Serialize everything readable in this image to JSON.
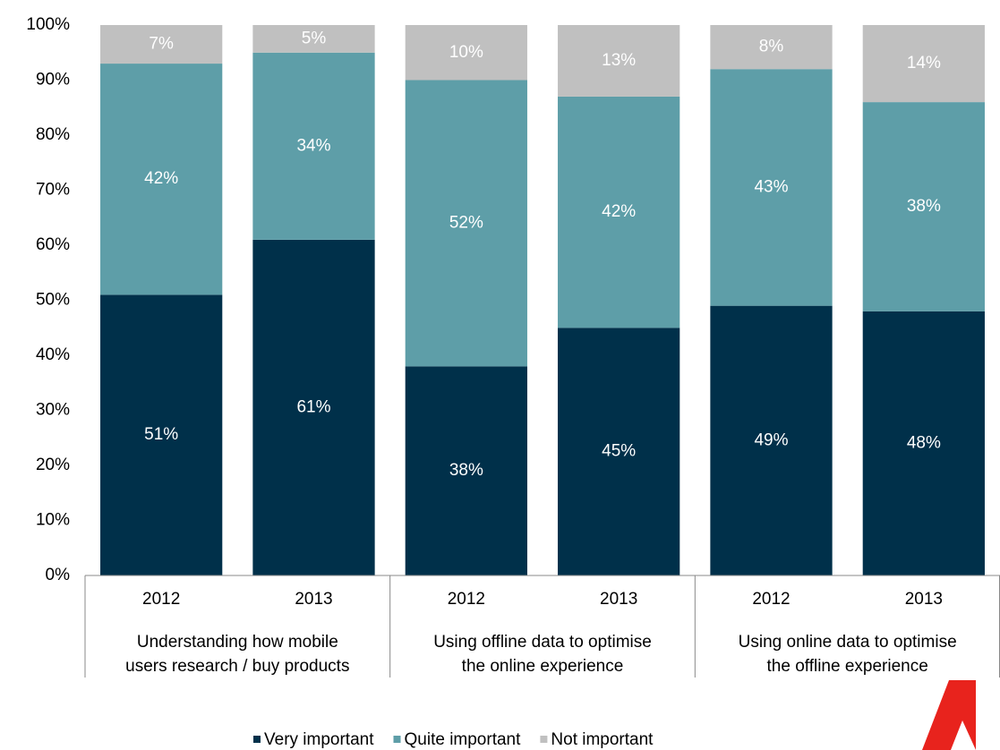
{
  "chart_data": {
    "type": "stacked_bar",
    "categories": [
      "2012",
      "2013",
      "2012",
      "2013",
      "2012",
      "2013"
    ],
    "groups": [
      [
        "Understanding how mobile",
        "users research / buy products"
      ],
      [
        "Using offline data to optimise",
        "the online experience"
      ],
      [
        "Using online data to optimise",
        "the offline experience"
      ]
    ],
    "series": [
      {
        "name": "Very important",
        "color": "#00304a",
        "values": [
          51,
          61,
          38,
          45,
          49,
          48
        ],
        "value_labels": [
          "51%",
          "61%",
          "38%",
          "45%",
          "49%",
          "48%"
        ]
      },
      {
        "name": "Quite important",
        "color": "#5e9ea8",
        "values": [
          42,
          34,
          52,
          42,
          43,
          38
        ],
        "value_labels": [
          "42%",
          "34%",
          "52%",
          "42%",
          "43%",
          "38%"
        ]
      },
      {
        "name": "Not important",
        "color": "#c0c0c0",
        "values": [
          7,
          5,
          10,
          13,
          8,
          14
        ],
        "value_labels": [
          "7%",
          "5%",
          "10%",
          "13%",
          "8%",
          "14%"
        ]
      }
    ],
    "ylim": [
      0,
      100
    ],
    "yticks": [
      {
        "value": 0,
        "label": "0%"
      },
      {
        "value": 10,
        "label": "10%"
      },
      {
        "value": 20,
        "label": "20%"
      },
      {
        "value": 30,
        "label": "30%"
      },
      {
        "value": 40,
        "label": "40%"
      },
      {
        "value": 50,
        "label": "50%"
      },
      {
        "value": 60,
        "label": "60%"
      },
      {
        "value": 70,
        "label": "70%"
      },
      {
        "value": 80,
        "label": "80%"
      },
      {
        "value": 90,
        "label": "90%"
      },
      {
        "value": 100,
        "label": "100%"
      }
    ]
  }
}
